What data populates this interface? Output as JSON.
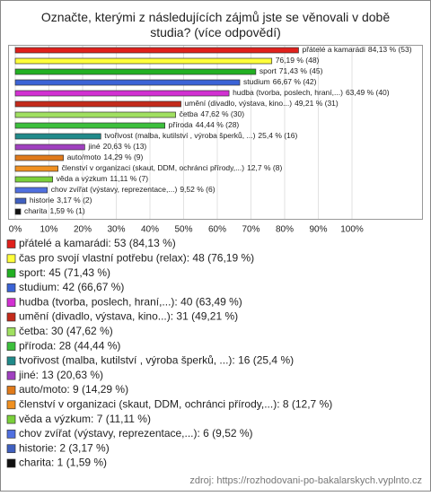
{
  "chart_data": {
    "type": "hbar",
    "title": "Označte, kterými z následujících zájmů jste se věnovali v době studia? (více odpovědí)",
    "categories": [
      "přátelé a kamarádi",
      "čas pro svojí vlastní potřebu (relax):",
      "sport",
      "studium",
      "hudba (tvorba, poslech, hraní,...)",
      "umění (divadlo, výstava, kino...)",
      "četba",
      "příroda",
      "tvořivost (malba, kutilství , výroba šperků, ...)",
      "jiné",
      "auto/moto",
      "členství v organizaci (skaut, DDM, ochránci přírody,...)",
      "věda a výzkum",
      "chov zvířat (výstavy, reprezentace,...)",
      "historie",
      "charita"
    ],
    "values": [
      84.13,
      76.19,
      71.43,
      66.67,
      63.49,
      49.21,
      47.62,
      44.44,
      25.4,
      20.63,
      14.29,
      12.7,
      11.11,
      9.52,
      3.17,
      1.59
    ],
    "value_labels": [
      "84,13 % (53)",
      "76,19 % (48)",
      "71,43 % (45)",
      "66,67 % (42)",
      "63,49 % (40)",
      "49,21 % (31)",
      "47,62 % (30)",
      "44,44 % (28)",
      "25,4 % (16)",
      "20,63 % (13)",
      "14,29 % (9)",
      "12,7 % (8)",
      "11,11 % (7)",
      "9,52 % (6)",
      "3,17 % (2)",
      "1,59 % (1)"
    ],
    "bar_names": [
      "přátelé a kamarádi",
      "",
      "sport",
      "studium",
      "hudba (tvorba, poslech, hraní,...)",
      "umění (divadlo, výstava, kino...)",
      "četba",
      "příroda",
      "tvořivost (malba, kutilství , výroba šperků, ...)",
      "jiné",
      "auto/moto",
      "členství v organizaci (skaut, DDM, ochránci přírody,...)",
      "věda a výzkum",
      "chov zvířat (výstavy, reprezentace,...)",
      "historie",
      "charita"
    ],
    "legend_labels": [
      "přátelé a kamarádi: 53 (84,13 %)",
      "čas pro svojí vlastní potřebu (relax): 48 (76,19 %)",
      "sport: 45 (71,43 %)",
      "studium: 42 (66,67 %)",
      "hudba (tvorba, poslech, hraní,...): 40 (63,49 %)",
      "umění (divadlo, výstava, kino...): 31 (49,21 %)",
      "četba: 30 (47,62 %)",
      "příroda: 28 (44,44 %)",
      "tvořivost (malba, kutilství , výroba šperků, ...): 16 (25,4 %)",
      "jiné: 13 (20,63 %)",
      "auto/moto: 9 (14,29 %)",
      "členství v organizaci (skaut, DDM, ochránci přírody,...): 8 (12,7 %)",
      "věda a výzkum: 7 (11,11 %)",
      "chov zvířat (výstavy, reprezentace,...): 6 (9,52 %)",
      "historie: 2 (3,17 %)",
      "charita: 1 (1,59 %)"
    ],
    "colors": [
      "#e0201b",
      "#ffff3a",
      "#22b022",
      "#3b63d6",
      "#d230d2",
      "#c42a1a",
      "#a0e060",
      "#3cbf3c",
      "#1f8a8a",
      "#a040c0",
      "#e07a1a",
      "#f09020",
      "#7ad03a",
      "#5070e0",
      "#4060c0",
      "#111111"
    ],
    "xlim": [
      0,
      100
    ],
    "xticks": [
      {
        "value": 0,
        "label": "0%"
      },
      {
        "value": 10,
        "label": "10%"
      },
      {
        "value": 20,
        "label": "20%"
      },
      {
        "value": 30,
        "label": "30%"
      },
      {
        "value": 40,
        "label": "40%"
      },
      {
        "value": 50,
        "label": "50%"
      },
      {
        "value": 60,
        "label": "60%"
      },
      {
        "value": 70,
        "label": "70%"
      },
      {
        "value": 80,
        "label": "80%"
      },
      {
        "value": 90,
        "label": "90%"
      },
      {
        "value": 100,
        "label": "100%"
      }
    ],
    "grid": true,
    "source": "zdroj: https://rozhodovani-po-bakalarskych.vyplnto.cz"
  }
}
